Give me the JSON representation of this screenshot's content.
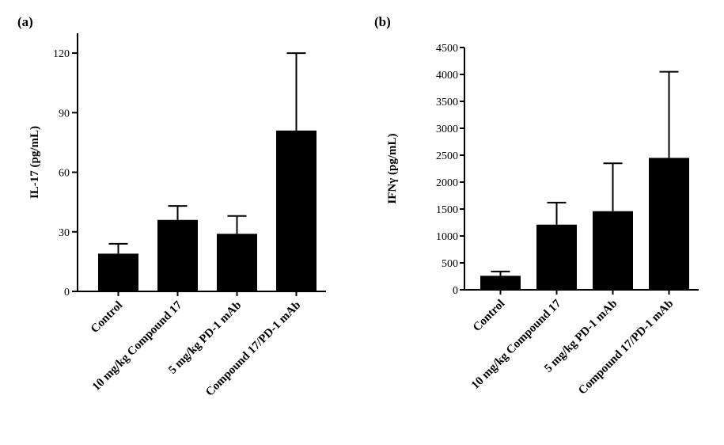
{
  "chart_data": [
    {
      "type": "bar",
      "panel_label": "(a)",
      "title": "",
      "xlabel": "",
      "ylabel": "IL-17 (pg/mL)",
      "ylim": [
        0,
        130
      ],
      "yticks": [
        0,
        30,
        60,
        90,
        120
      ],
      "categories": [
        "Control",
        "10 mg/kg Compound 17",
        "5 mg/kg PD-1 mAb",
        "Compound 17/PD-1 mAb"
      ],
      "values": [
        19,
        36,
        29,
        81
      ],
      "error_upper": [
        24,
        43,
        38,
        120
      ],
      "bar_color": "#000000",
      "grid": false,
      "legend": "none"
    },
    {
      "type": "bar",
      "panel_label": "(b)",
      "title": "",
      "xlabel": "",
      "ylabel": "IFNγ (pg/mL)",
      "ylim": [
        0,
        4500
      ],
      "yticks": [
        0,
        500,
        1000,
        1500,
        2000,
        2500,
        3000,
        3500,
        4000,
        4500
      ],
      "categories": [
        "Control",
        "10 mg/kg Compound 17",
        "5 mg/kg PD-1 mAb",
        "Compound 17/PD-1 mAb"
      ],
      "values": [
        260,
        1210,
        1460,
        2450
      ],
      "error_upper": [
        340,
        1620,
        2350,
        4050
      ],
      "bar_color": "#000000",
      "grid": false,
      "legend": "none"
    }
  ]
}
